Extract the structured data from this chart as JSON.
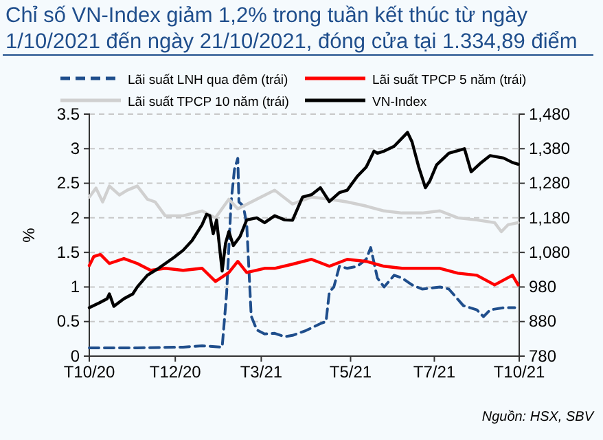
{
  "chart_data": {
    "type": "line",
    "title": "Chỉ số VN-Index giảm 1,2% trong tuần kết thúc từ ngày 1/10/2021 đến ngày 21/10/2021, đóng cửa tại 1.334,89 điểm",
    "ylabel": "%",
    "annotations": [
      "Nguồn: HSX, SBV"
    ],
    "xlim": [
      "2020-10-01",
      "2021-10-21"
    ],
    "xticks": [
      {
        "value": "2020-10-01",
        "label": "T10/20"
      },
      {
        "value": "2020-12-17",
        "label": "T12/20"
      },
      {
        "value": "2021-03-04",
        "label": "T3/21"
      },
      {
        "value": "2021-05-23",
        "label": "T5/21"
      },
      {
        "value": "2021-08-06",
        "label": "T7/21"
      },
      {
        "value": "2021-10-21",
        "label": "T10/21"
      }
    ],
    "ylim": [
      0,
      3.5
    ],
    "yticks": [
      0,
      0.5,
      1,
      1.5,
      2,
      2.5,
      3,
      3.5
    ],
    "y2lim": [
      780,
      1480
    ],
    "y2ticks": [
      {
        "value": 780,
        "label": "780"
      },
      {
        "value": 880,
        "label": "880"
      },
      {
        "value": 980,
        "label": "980"
      },
      {
        "value": 1080,
        "label": "1,080"
      },
      {
        "value": 1180,
        "label": "1,180"
      },
      {
        "value": 1280,
        "label": "1,280"
      },
      {
        "value": 1380,
        "label": "1,380"
      },
      {
        "value": 1480,
        "label": "1,480"
      }
    ],
    "grid": "y",
    "legend": "top",
    "marker": "none",
    "series": [
      {
        "name": "Lãi suất LNH qua đêm (trái)",
        "color": "#1f4e8c",
        "line_style": "dashed",
        "x": [
          "2020-10-01",
          "2020-11-13",
          "2020-12-24",
          "2021-01-10",
          "2021-01-28",
          "2021-02-01",
          "2021-02-05",
          "2021-02-08",
          "2021-02-11",
          "2021-02-12",
          "2021-02-16",
          "2021-02-19",
          "2021-02-23",
          "2021-02-28",
          "2021-03-07",
          "2021-03-16",
          "2021-03-25",
          "2021-04-01",
          "2021-04-13",
          "2021-04-26",
          "2021-05-01",
          "2021-05-04",
          "2021-05-08",
          "2021-05-13",
          "2021-05-20",
          "2021-05-29",
          "2021-06-06",
          "2021-06-10",
          "2021-06-16",
          "2021-06-22",
          "2021-07-01",
          "2021-07-08",
          "2021-07-17",
          "2021-07-26",
          "2021-08-11",
          "2021-08-19",
          "2021-09-01",
          "2021-09-13",
          "2021-09-19",
          "2021-09-25",
          "2021-10-07",
          "2021-10-17"
        ],
        "values": [
          0.12,
          0.12,
          0.13,
          0.15,
          0.13,
          0.91,
          2.23,
          2.7,
          2.86,
          2.23,
          2.17,
          1.9,
          0.58,
          0.38,
          0.32,
          0.33,
          0.28,
          0.3,
          0.37,
          0.47,
          0.5,
          0.93,
          1.0,
          1.3,
          1.27,
          1.3,
          1.4,
          1.57,
          1.13,
          1.0,
          1.17,
          1.13,
          1.03,
          0.97,
          1.0,
          0.97,
          0.73,
          0.67,
          0.57,
          0.67,
          0.7,
          0.7
        ]
      },
      {
        "name": "Lãi suất TPCP 5 năm (trái)",
        "color": "#ff0000",
        "line_style": "solid",
        "x": [
          "2020-10-01",
          "2020-10-05",
          "2020-10-11",
          "2020-10-19",
          "2020-11-01",
          "2020-11-13",
          "2020-11-25",
          "2020-12-08",
          "2020-12-24",
          "2021-01-10",
          "2021-01-22",
          "2021-02-03",
          "2021-02-11",
          "2021-02-19",
          "2021-03-07",
          "2021-03-16",
          "2021-04-01",
          "2021-04-18",
          "2021-05-04",
          "2021-05-20",
          "2021-06-06",
          "2021-06-22",
          "2021-07-08",
          "2021-07-26",
          "2021-08-11",
          "2021-08-27",
          "2021-09-13",
          "2021-09-29",
          "2021-10-07",
          "2021-10-15",
          "2021-10-20"
        ],
        "values": [
          1.31,
          1.44,
          1.47,
          1.34,
          1.41,
          1.34,
          1.24,
          1.27,
          1.24,
          1.27,
          1.08,
          1.21,
          1.37,
          1.21,
          1.27,
          1.27,
          1.33,
          1.4,
          1.3,
          1.4,
          1.37,
          1.3,
          1.27,
          1.27,
          1.27,
          1.2,
          1.17,
          1.03,
          1.1,
          1.17,
          1.03
        ]
      },
      {
        "name": "Lãi suất TPCP 10 năm (trái)",
        "color": "#d0d0d0",
        "line_style": "solid",
        "x": [
          "2020-10-01",
          "2020-10-07",
          "2020-10-13",
          "2020-10-19",
          "2020-10-28",
          "2020-11-04",
          "2020-11-13",
          "2020-11-22",
          "2020-11-29",
          "2020-12-08",
          "2020-12-24",
          "2021-01-10",
          "2021-01-22",
          "2021-02-03",
          "2021-02-11",
          "2021-02-28",
          "2021-03-16",
          "2021-04-01",
          "2021-04-18",
          "2021-05-04",
          "2021-05-20",
          "2021-06-06",
          "2021-06-22",
          "2021-07-08",
          "2021-07-26",
          "2021-08-11",
          "2021-08-27",
          "2021-09-13",
          "2021-09-29",
          "2021-10-05",
          "2021-10-11",
          "2021-10-20"
        ],
        "values": [
          2.3,
          2.43,
          2.23,
          2.46,
          2.33,
          2.4,
          2.46,
          2.27,
          2.23,
          2.03,
          2.03,
          2.1,
          2.0,
          2.27,
          2.13,
          2.27,
          2.4,
          2.2,
          2.3,
          2.27,
          2.23,
          2.17,
          2.1,
          2.07,
          2.07,
          2.1,
          2.0,
          1.97,
          1.93,
          1.8,
          1.9,
          1.93
        ]
      },
      {
        "name": "VN-Index",
        "color": "#000000",
        "line_style": "solid",
        "axis": "y2",
        "x": [
          "2020-10-01",
          "2020-10-10",
          "2020-10-17",
          "2020-10-19",
          "2020-10-23",
          "2020-11-01",
          "2020-11-09",
          "2020-11-13",
          "2020-11-22",
          "2020-12-02",
          "2020-12-16",
          "2020-12-24",
          "2021-01-01",
          "2021-01-10",
          "2021-01-14",
          "2021-01-17",
          "2021-01-20",
          "2021-01-23",
          "2021-01-28",
          "2021-01-31",
          "2021-02-03",
          "2021-02-07",
          "2021-02-13",
          "2021-02-19",
          "2021-02-28",
          "2021-03-07",
          "2021-03-16",
          "2021-03-25",
          "2021-04-01",
          "2021-04-10",
          "2021-04-18",
          "2021-04-26",
          "2021-05-04",
          "2021-05-13",
          "2021-05-20",
          "2021-05-29",
          "2021-06-06",
          "2021-06-13",
          "2021-06-16",
          "2021-06-22",
          "2021-07-01",
          "2021-07-13",
          "2021-07-17",
          "2021-07-23",
          "2021-07-29",
          "2021-08-02",
          "2021-08-08",
          "2021-08-19",
          "2021-09-02",
          "2021-09-08",
          "2021-09-17",
          "2021-09-25",
          "2021-10-07",
          "2021-10-15",
          "2021-10-20"
        ],
        "values": [
          920,
          934,
          946,
          960,
          924,
          946,
          960,
          980,
          1014,
          1034,
          1066,
          1086,
          1114,
          1160,
          1190,
          1186,
          1134,
          1174,
          1026,
          1106,
          1140,
          1100,
          1126,
          1174,
          1180,
          1166,
          1186,
          1174,
          1173,
          1240,
          1247,
          1267,
          1227,
          1253,
          1260,
          1300,
          1327,
          1373,
          1367,
          1373,
          1387,
          1427,
          1400,
          1327,
          1267,
          1287,
          1333,
          1367,
          1380,
          1313,
          1340,
          1360,
          1353,
          1340,
          1335
        ]
      }
    ]
  }
}
